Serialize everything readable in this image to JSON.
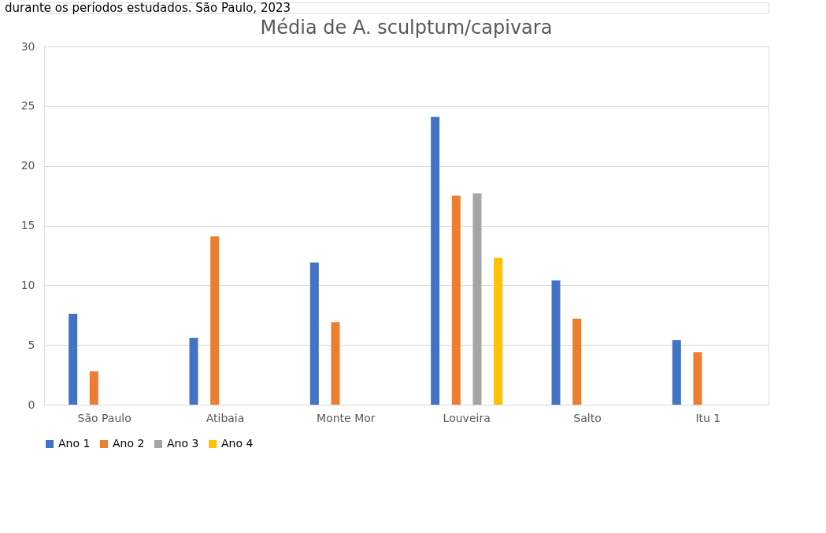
{
  "chart_data": {
    "type": "bar",
    "title": "Média de A. sculptum/capivara",
    "annotations": [
      "durante os períodos estudados. São Paulo, 2023"
    ],
    "categories": [
      "São Paulo",
      "Atibaia",
      "Monte Mor",
      "Louveira",
      "Salto",
      "Itu 1"
    ],
    "series": [
      {
        "name": "Ano 1",
        "color": "#4472c4",
        "values": [
          7.6,
          5.6,
          11.9,
          24.1,
          10.4,
          5.4
        ]
      },
      {
        "name": "Ano 2",
        "color": "#ed7d31",
        "values": [
          2.8,
          14.1,
          6.9,
          17.5,
          7.2,
          4.4
        ]
      },
      {
        "name": "Ano 3",
        "color": "#a5a5a5",
        "values": [
          null,
          null,
          null,
          17.7,
          null,
          null
        ]
      },
      {
        "name": "Ano 4",
        "color": "#ffc000",
        "values": [
          null,
          null,
          null,
          12.3,
          null,
          null
        ]
      }
    ],
    "ylim": [
      0,
      30
    ],
    "yticks": [
      0,
      5,
      10,
      15,
      20,
      25,
      30
    ],
    "grid": "y",
    "legend": "bottom"
  }
}
